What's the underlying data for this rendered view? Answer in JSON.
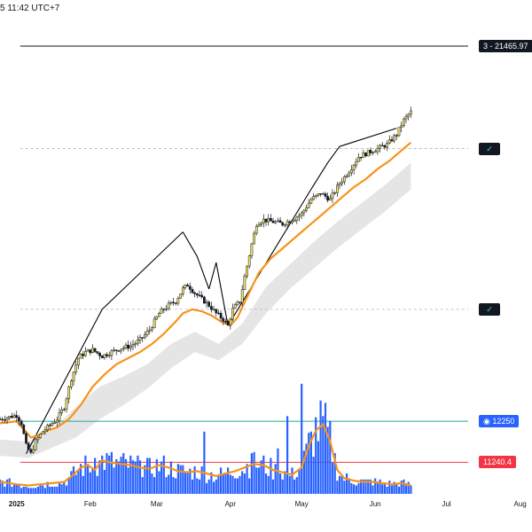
{
  "header": {
    "timestamp": "5 11:42 UTC+7"
  },
  "price_tags": [
    {
      "id": "target",
      "text": "3 - 21465.97",
      "price": 21465.97,
      "style": "dark"
    },
    {
      "id": "check-upper",
      "text": "✓",
      "price": 18950,
      "style": "check"
    },
    {
      "id": "check-lower",
      "text": "✓",
      "price": 15000,
      "style": "check"
    },
    {
      "id": "blue-level",
      "text": "◉ 12250",
      "price": 12250,
      "style": "blue"
    },
    {
      "id": "red-level",
      "text": "11240.4",
      "price": 11240.4,
      "style": "red"
    }
  ],
  "horizontal_lines": [
    {
      "name": "target-line",
      "price": 21465.97,
      "color": "#131722",
      "dashed": false
    },
    {
      "name": "upper-dashed-line",
      "price": 18950,
      "color": "#b2b5be",
      "dashed": true
    },
    {
      "name": "lower-dashed-line",
      "price": 15000,
      "color": "#b2b5be",
      "dashed": true
    },
    {
      "name": "green-level-line",
      "price": 12250,
      "color": "#26a69a",
      "dashed": false
    },
    {
      "name": "red-level-line",
      "price": 11240.4,
      "color": "#f23645",
      "dashed": false
    }
  ],
  "x_ticks": [
    {
      "label": "2025",
      "date_index": 0,
      "bold": true
    },
    {
      "label": "Feb",
      "date_index": 31,
      "bold": false
    },
    {
      "label": "Mar",
      "date_index": 59,
      "bold": false
    },
    {
      "label": "Apr",
      "date_index": 90,
      "bold": false
    },
    {
      "label": "May",
      "date_index": 120,
      "bold": false
    },
    {
      "label": "Jun",
      "date_index": 151,
      "bold": false
    },
    {
      "label": "Jul",
      "date_index": 181,
      "bold": false
    },
    {
      "label": "Aug",
      "date_index": 212,
      "bold": false
    }
  ],
  "colors": {
    "candle_body": "#f5e663",
    "candle_outline": "#131722",
    "ema": "#f7931a",
    "volume": "#2962ff",
    "volume_ma": "#f7931a",
    "band": "#dcdcdc",
    "trend_line": "#000000"
  },
  "chart_data": {
    "type": "candlestick",
    "price_range": [
      10400,
      22600
    ],
    "date_range_days": [
      -7,
      217
    ],
    "candles": [],
    "ema_trend": [
      [
        -7,
        12200
      ],
      [
        0,
        12250
      ],
      [
        3,
        12050
      ],
      [
        6,
        11850
      ],
      [
        9,
        11900
      ],
      [
        12,
        12000
      ],
      [
        17,
        12100
      ],
      [
        22,
        12300
      ],
      [
        27,
        12650
      ],
      [
        32,
        13100
      ],
      [
        37,
        13400
      ],
      [
        42,
        13650
      ],
      [
        47,
        13800
      ],
      [
        52,
        13950
      ],
      [
        57,
        14150
      ],
      [
        62,
        14400
      ],
      [
        67,
        14700
      ],
      [
        70,
        14900
      ],
      [
        74,
        15000
      ],
      [
        78,
        14950
      ],
      [
        82,
        14850
      ],
      [
        86,
        14700
      ],
      [
        90,
        14600
      ],
      [
        93,
        14800
      ],
      [
        97,
        15300
      ],
      [
        102,
        15900
      ],
      [
        107,
        16250
      ],
      [
        112,
        16500
      ],
      [
        117,
        16750
      ],
      [
        122,
        17000
      ],
      [
        127,
        17250
      ],
      [
        132,
        17500
      ],
      [
        137,
        17750
      ],
      [
        142,
        18000
      ],
      [
        147,
        18200
      ],
      [
        152,
        18450
      ],
      [
        157,
        18650
      ],
      [
        162,
        18900
      ],
      [
        166,
        19100
      ]
    ],
    "price_path": [
      [
        -7,
        12300
      ],
      [
        0,
        12400
      ],
      [
        2,
        12200
      ],
      [
        4,
        11650
      ],
      [
        6,
        11450
      ],
      [
        8,
        11750
      ],
      [
        11,
        12000
      ],
      [
        14,
        12150
      ],
      [
        17,
        12300
      ],
      [
        20,
        12600
      ],
      [
        23,
        13300
      ],
      [
        26,
        13800
      ],
      [
        29,
        13950
      ],
      [
        32,
        14000
      ],
      [
        36,
        13850
      ],
      [
        40,
        13950
      ],
      [
        44,
        14050
      ],
      [
        48,
        14100
      ],
      [
        52,
        14250
      ],
      [
        56,
        14500
      ],
      [
        60,
        14900
      ],
      [
        64,
        15100
      ],
      [
        67,
        15200
      ],
      [
        70,
        15500
      ],
      [
        72,
        15600
      ],
      [
        75,
        15400
      ],
      [
        78,
        15250
      ],
      [
        81,
        15100
      ],
      [
        84,
        14900
      ],
      [
        87,
        14750
      ],
      [
        89,
        14600
      ],
      [
        91,
        15000
      ],
      [
        94,
        15200
      ],
      [
        96,
        15800
      ],
      [
        99,
        16600
      ],
      [
        101,
        17100
      ],
      [
        104,
        17200
      ],
      [
        108,
        17150
      ],
      [
        112,
        17100
      ],
      [
        116,
        17200
      ],
      [
        120,
        17350
      ],
      [
        124,
        17700
      ],
      [
        128,
        17850
      ],
      [
        132,
        17700
      ],
      [
        136,
        18100
      ],
      [
        140,
        18400
      ],
      [
        144,
        18750
      ],
      [
        148,
        18850
      ],
      [
        152,
        18950
      ],
      [
        156,
        19050
      ],
      [
        160,
        19300
      ],
      [
        163,
        19650
      ],
      [
        166,
        19850
      ]
    ],
    "trend_segments": [
      [
        [
          4,
          11450
        ],
        [
          36,
          15000
        ]
      ],
      [
        [
          36,
          15000
        ],
        [
          70,
          16900
        ]
      ],
      [
        [
          70,
          16900
        ],
        [
          76,
          16300
        ]
      ],
      [
        [
          76,
          16300
        ],
        [
          81,
          15500
        ]
      ],
      [
        [
          81,
          15500
        ],
        [
          84,
          16150
        ]
      ],
      [
        [
          84,
          16150
        ],
        [
          89,
          14600
        ]
      ],
      [
        [
          89,
          14600
        ],
        [
          124,
          17950
        ]
      ],
      [
        [
          124,
          17950
        ],
        [
          131,
          18600
        ]
      ],
      [
        [
          131,
          18600
        ],
        [
          136,
          19000
        ]
      ],
      [
        [
          136,
          19000
        ],
        [
          160,
          19450
        ]
      ]
    ],
    "band_upper": [
      [
        -7,
        11800
      ],
      [
        5,
        11750
      ],
      [
        15,
        12050
      ],
      [
        25,
        12600
      ],
      [
        35,
        13100
      ],
      [
        45,
        13350
      ],
      [
        55,
        13650
      ],
      [
        65,
        14150
      ],
      [
        75,
        14450
      ],
      [
        85,
        14150
      ],
      [
        95,
        14650
      ],
      [
        105,
        15550
      ],
      [
        115,
        16100
      ],
      [
        125,
        16650
      ],
      [
        135,
        17150
      ],
      [
        145,
        17600
      ],
      [
        155,
        18050
      ],
      [
        166,
        18600
      ]
    ],
    "band_lower": [
      [
        -7,
        11400
      ],
      [
        5,
        11350
      ],
      [
        15,
        11600
      ],
      [
        25,
        11850
      ],
      [
        35,
        12300
      ],
      [
        45,
        12650
      ],
      [
        55,
        13050
      ],
      [
        65,
        13550
      ],
      [
        75,
        13950
      ],
      [
        85,
        13750
      ],
      [
        95,
        14150
      ],
      [
        105,
        14900
      ],
      [
        115,
        15500
      ],
      [
        125,
        16000
      ],
      [
        135,
        16500
      ],
      [
        145,
        16950
      ],
      [
        155,
        17400
      ],
      [
        166,
        17950
      ]
    ],
    "volume_scale_max": 100,
    "volume": [],
    "volume_ma": [
      [
        -7,
        10
      ],
      [
        0,
        8
      ],
      [
        5,
        7
      ],
      [
        10,
        8
      ],
      [
        15,
        9
      ],
      [
        20,
        10
      ],
      [
        24,
        16
      ],
      [
        27,
        22
      ],
      [
        30,
        24
      ],
      [
        33,
        20
      ],
      [
        36,
        28
      ],
      [
        40,
        26
      ],
      [
        44,
        25
      ],
      [
        48,
        24
      ],
      [
        52,
        22
      ],
      [
        56,
        21
      ],
      [
        60,
        24
      ],
      [
        64,
        22
      ],
      [
        68,
        19
      ],
      [
        72,
        18
      ],
      [
        76,
        19
      ],
      [
        80,
        17
      ],
      [
        84,
        15
      ],
      [
        88,
        17
      ],
      [
        92,
        19
      ],
      [
        96,
        22
      ],
      [
        100,
        25
      ],
      [
        104,
        24
      ],
      [
        108,
        20
      ],
      [
        112,
        18
      ],
      [
        116,
        16
      ],
      [
        120,
        22
      ],
      [
        123,
        40
      ],
      [
        126,
        53
      ],
      [
        129,
        58
      ],
      [
        132,
        44
      ],
      [
        135,
        20
      ],
      [
        138,
        13
      ],
      [
        142,
        11
      ],
      [
        146,
        10
      ],
      [
        150,
        10
      ],
      [
        154,
        9
      ],
      [
        158,
        8
      ],
      [
        162,
        9
      ],
      [
        166,
        7
      ]
    ]
  }
}
